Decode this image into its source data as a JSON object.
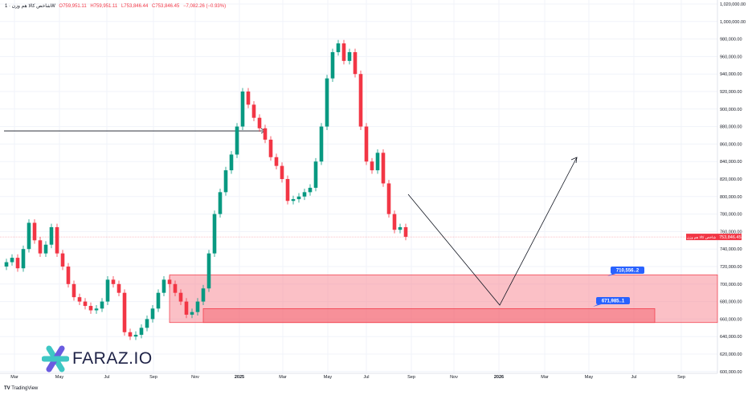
{
  "header": {
    "symbol": "شاخص کالا هم وزن · 1W",
    "open": "O759,951.11",
    "high": "H759,951.11",
    "low": "L753,846.44",
    "close": "C753,846.45",
    "change": "−7,082.26 (−0.93%)"
  },
  "branding": {
    "logo": "FARAZ.IO",
    "footer": "TradingView"
  },
  "colors": {
    "up": "#089981",
    "down": "#f23645",
    "zone": "#f7a1a9",
    "label": "#2962ff"
  },
  "chart_data": {
    "type": "candlestick",
    "title": "شاخص کالا هم وزن",
    "ylim": [
      600000,
      1020000
    ],
    "y_ticks": [
      "1,020,000.00",
      "1,000,000.00",
      "980,000.00",
      "960,000.00",
      "940,000.00",
      "920,000.00",
      "900,000.00",
      "880,000.00",
      "860,000.00",
      "840,000.00",
      "820,000.00",
      "800,000.00",
      "780,000.00",
      "760,000.00",
      "740,000.00",
      "720,000.00",
      "700,000.00",
      "680,000.00",
      "660,000.00",
      "640,000.00",
      "620,000.00",
      "600,000.00"
    ],
    "x_ticks": [
      "Mar",
      "May",
      "Jul",
      "Sep",
      "Nov",
      "2025",
      "Mar",
      "May",
      "Jul",
      "Sep",
      "Nov",
      "2026",
      "Mar",
      "May",
      "Jul",
      "Sep"
    ],
    "closes": [
      725,
      730,
      718,
      740,
      770,
      750,
      735,
      745,
      765,
      735,
      720,
      700,
      685,
      680,
      675,
      670,
      672,
      680,
      705,
      700,
      690,
      645,
      640,
      642,
      650,
      660,
      672,
      690,
      705,
      700,
      690,
      680,
      665,
      668,
      680,
      695,
      735,
      780,
      805,
      830,
      848,
      880,
      920,
      905,
      890,
      878,
      865,
      845,
      835,
      820,
      795,
      797,
      800,
      805,
      810,
      840,
      880,
      935,
      965,
      975,
      955,
      965,
      940,
      880,
      840,
      830,
      850,
      815,
      780,
      762,
      765,
      754
    ],
    "last_price": {
      "value": "753,846.45",
      "label": "شاخص کالا هم وزن"
    },
    "zones": [
      {
        "label": "710,556..2",
        "top": 710556,
        "bottom": 656000
      },
      {
        "label": "671,985..1",
        "top": 671985,
        "bottom": 656000
      }
    ],
    "horizontal_line": 875000
  }
}
